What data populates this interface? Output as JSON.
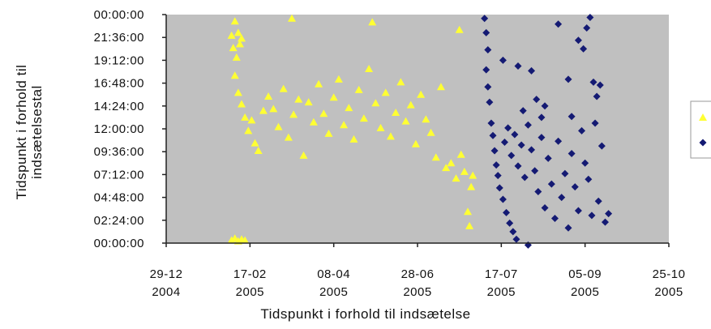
{
  "chart_data": {
    "type": "scatter",
    "title": "",
    "xlabel": "Tidspunkt i forhold til indsætelse",
    "ylabel_lines": [
      "Tidspunkt i forhold til",
      "indsætelsestal"
    ],
    "x_ticks": [
      {
        "line1": "29-12",
        "line2": "2004"
      },
      {
        "line1": "17-02",
        "line2": "2005"
      },
      {
        "line1": "08-04",
        "line2": "2005"
      },
      {
        "line1": "28-06",
        "line2": "2005"
      },
      {
        "line1": "17-07",
        "line2": "2005"
      },
      {
        "line1": "05-09",
        "line2": "2005"
      },
      {
        "line1": "25-10",
        "line2": "2005"
      }
    ],
    "y_ticks": [
      "00:00:00",
      "02:24:00",
      "04:48:00",
      "07:12:00",
      "09:36:00",
      "12:00:00",
      "14:24:00",
      "16:48:00",
      "19:12:00",
      "21:36:00",
      "00:00:00"
    ],
    "y_range_hours": [
      0,
      24
    ],
    "x_range": [
      "2004-12-29",
      "2005-10-25"
    ],
    "grid": false,
    "plot_background": "#c0c0c0",
    "legend_placement": "right",
    "series": [
      {
        "color": "#ffff33",
        "marker": "triangle",
        "points": [
          [
            "2005-02-06",
            0.3
          ],
          [
            "2005-02-08",
            0.5
          ],
          [
            "2005-02-10",
            0.2
          ],
          [
            "2005-02-12",
            0.4
          ],
          [
            "2005-02-14",
            0.3
          ],
          [
            "2005-02-06",
            21.8
          ],
          [
            "2005-02-07",
            20.5
          ],
          [
            "2005-02-08",
            23.3
          ],
          [
            "2005-02-09",
            19.5
          ],
          [
            "2005-02-10",
            22.1
          ],
          [
            "2005-02-11",
            20.9
          ],
          [
            "2005-02-12",
            21.5
          ],
          [
            "2005-02-08",
            17.6
          ],
          [
            "2005-02-10",
            15.8
          ],
          [
            "2005-02-12",
            14.6
          ],
          [
            "2005-02-14",
            13.2
          ],
          [
            "2005-02-16",
            11.8
          ],
          [
            "2005-02-18",
            12.9
          ],
          [
            "2005-02-20",
            10.5
          ],
          [
            "2005-02-22",
            9.7
          ],
          [
            "2005-02-25",
            13.9
          ],
          [
            "2005-02-28",
            15.4
          ],
          [
            "2005-03-03",
            14.1
          ],
          [
            "2005-03-06",
            12.2
          ],
          [
            "2005-03-09",
            16.2
          ],
          [
            "2005-03-12",
            11.1
          ],
          [
            "2005-03-14",
            23.6
          ],
          [
            "2005-03-15",
            13.5
          ],
          [
            "2005-03-18",
            15.1
          ],
          [
            "2005-03-21",
            9.2
          ],
          [
            "2005-03-24",
            14.8
          ],
          [
            "2005-03-27",
            12.7
          ],
          [
            "2005-03-30",
            16.7
          ],
          [
            "2005-04-02",
            13.6
          ],
          [
            "2005-04-05",
            11.5
          ],
          [
            "2005-04-08",
            15.3
          ],
          [
            "2005-04-11",
            17.2
          ],
          [
            "2005-04-14",
            12.4
          ],
          [
            "2005-04-17",
            14.2
          ],
          [
            "2005-04-20",
            10.9
          ],
          [
            "2005-04-23",
            16.1
          ],
          [
            "2005-04-26",
            13.1
          ],
          [
            "2005-04-29",
            18.3
          ],
          [
            "2005-05-01",
            23.2
          ],
          [
            "2005-05-03",
            14.7
          ],
          [
            "2005-05-06",
            12.1
          ],
          [
            "2005-05-09",
            15.8
          ],
          [
            "2005-05-12",
            11.2
          ],
          [
            "2005-05-15",
            13.7
          ],
          [
            "2005-05-18",
            16.9
          ],
          [
            "2005-05-21",
            12.8
          ],
          [
            "2005-05-24",
            14.5
          ],
          [
            "2005-05-27",
            10.4
          ],
          [
            "2005-05-30",
            15.6
          ],
          [
            "2005-06-02",
            13.0
          ],
          [
            "2005-06-05",
            11.6
          ],
          [
            "2005-06-08",
            9.0
          ],
          [
            "2005-06-11",
            16.4
          ],
          [
            "2005-06-14",
            7.9
          ],
          [
            "2005-06-17",
            8.4
          ],
          [
            "2005-06-20",
            6.8
          ],
          [
            "2005-06-22",
            22.4
          ],
          [
            "2005-06-23",
            9.3
          ],
          [
            "2005-06-25",
            7.5
          ],
          [
            "2005-06-27",
            3.3
          ],
          [
            "2005-06-28",
            1.8
          ],
          [
            "2005-06-29",
            5.9
          ],
          [
            "2005-06-30",
            7.1
          ]
        ]
      },
      {
        "color": "#141a73",
        "marker": "diamond",
        "points": [
          [
            "2005-07-07",
            23.6
          ],
          [
            "2005-07-08",
            22.1
          ],
          [
            "2005-07-09",
            20.3
          ],
          [
            "2005-07-08",
            18.2
          ],
          [
            "2005-07-09",
            16.4
          ],
          [
            "2005-07-10",
            14.8
          ],
          [
            "2005-07-11",
            12.6
          ],
          [
            "2005-07-12",
            11.3
          ],
          [
            "2005-07-13",
            9.7
          ],
          [
            "2005-07-14",
            8.2
          ],
          [
            "2005-07-15",
            7.1
          ],
          [
            "2005-07-16",
            5.8
          ],
          [
            "2005-07-18",
            4.6
          ],
          [
            "2005-07-20",
            3.2
          ],
          [
            "2005-07-22",
            2.1
          ],
          [
            "2005-07-24",
            1.2
          ],
          [
            "2005-07-26",
            0.4
          ],
          [
            "2005-07-19",
            10.6
          ],
          [
            "2005-07-21",
            12.1
          ],
          [
            "2005-07-23",
            9.2
          ],
          [
            "2005-07-25",
            11.4
          ],
          [
            "2005-07-27",
            8.1
          ],
          [
            "2005-07-29",
            10.3
          ],
          [
            "2005-07-31",
            6.9
          ],
          [
            "2005-08-02",
            12.4
          ],
          [
            "2005-08-04",
            9.8
          ],
          [
            "2005-08-06",
            7.6
          ],
          [
            "2005-08-08",
            5.4
          ],
          [
            "2005-08-10",
            11.1
          ],
          [
            "2005-08-12",
            3.7
          ],
          [
            "2005-08-14",
            8.9
          ],
          [
            "2005-08-16",
            6.2
          ],
          [
            "2005-08-18",
            2.6
          ],
          [
            "2005-08-20",
            10.7
          ],
          [
            "2005-08-22",
            4.8
          ],
          [
            "2005-08-24",
            7.3
          ],
          [
            "2005-08-26",
            1.6
          ],
          [
            "2005-08-28",
            9.4
          ],
          [
            "2005-08-30",
            5.9
          ],
          [
            "2005-09-01",
            3.4
          ],
          [
            "2005-09-03",
            11.8
          ],
          [
            "2005-09-05",
            8.4
          ],
          [
            "2005-09-07",
            6.7
          ],
          [
            "2005-09-09",
            2.9
          ],
          [
            "2005-09-11",
            12.6
          ],
          [
            "2005-09-13",
            4.4
          ],
          [
            "2005-09-15",
            10.2
          ],
          [
            "2005-09-17",
            2.2
          ],
          [
            "2005-09-19",
            3.1
          ],
          [
            "2005-07-18",
            19.2
          ],
          [
            "2005-07-27",
            18.6
          ],
          [
            "2005-08-04",
            18.1
          ],
          [
            "2005-08-07",
            15.1
          ],
          [
            "2005-08-20",
            23.0
          ],
          [
            "2005-08-26",
            17.2
          ],
          [
            "2005-09-01",
            21.3
          ],
          [
            "2005-09-04",
            20.4
          ],
          [
            "2005-09-06",
            22.6
          ],
          [
            "2005-09-08",
            23.7
          ],
          [
            "2005-09-10",
            16.9
          ],
          [
            "2005-09-12",
            15.4
          ],
          [
            "2005-09-14",
            16.6
          ],
          [
            "2005-08-10",
            13.2
          ],
          [
            "2005-08-12",
            14.4
          ],
          [
            "2005-07-30",
            13.9
          ],
          [
            "2005-08-28",
            13.3
          ],
          [
            "2005-08-02",
            -0.2
          ]
        ]
      }
    ]
  }
}
